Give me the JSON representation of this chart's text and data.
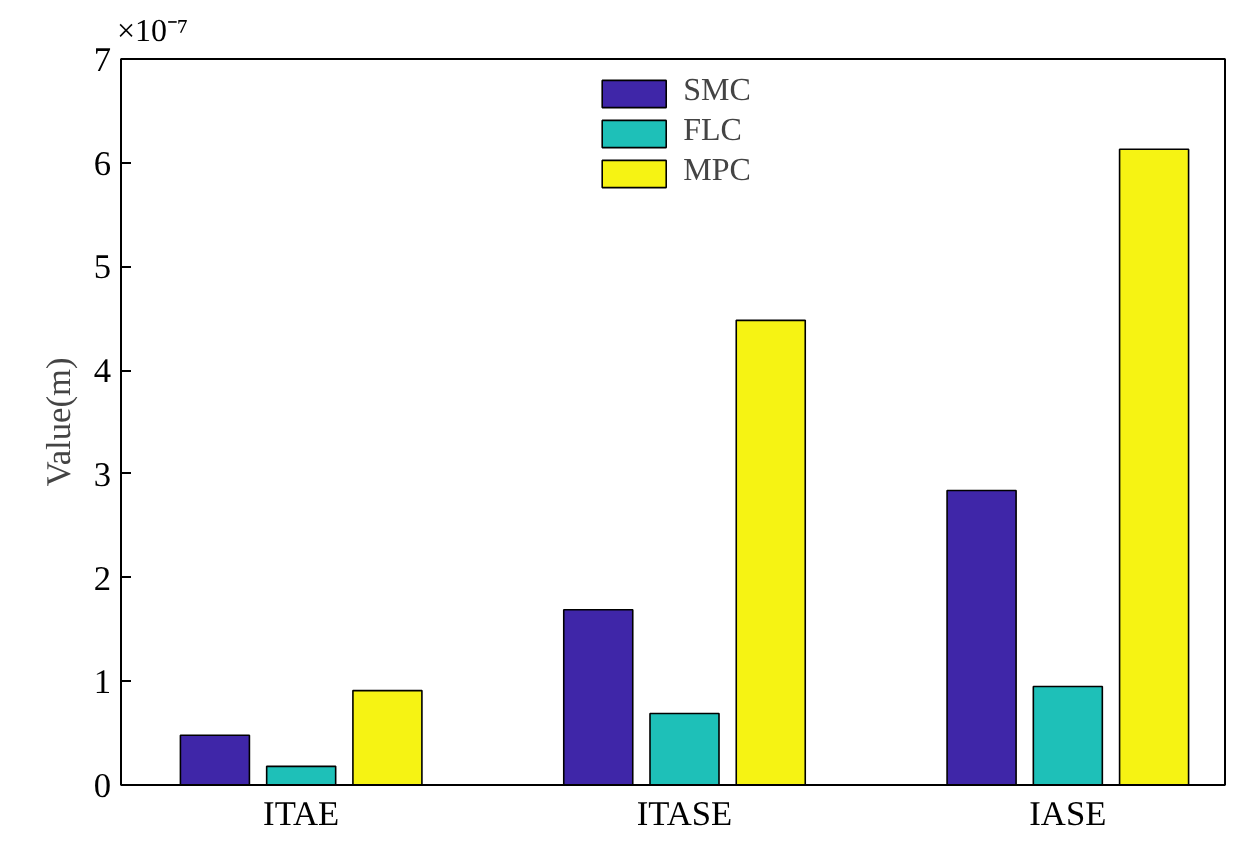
{
  "chart_data": {
    "type": "bar",
    "ylabel": "Value(m)",
    "annotations": [
      "×10⁻⁷"
    ],
    "categories": [
      "ITAE",
      "ITASE",
      "IASE"
    ],
    "series": [
      {
        "name": "SMC",
        "color": "#3f26a8",
        "values": [
          0.48,
          1.69,
          2.84
        ]
      },
      {
        "name": "FLC",
        "color": "#1ec0b8",
        "values": [
          0.18,
          0.69,
          0.95
        ]
      },
      {
        "name": "MPC",
        "color": "#f6f313",
        "values": [
          0.91,
          4.48,
          6.13
        ]
      }
    ],
    "ylim": [
      0,
      7
    ],
    "yticks": [
      0,
      1,
      2,
      3,
      4,
      5,
      6,
      7
    ],
    "grid": false,
    "legend": "top"
  }
}
